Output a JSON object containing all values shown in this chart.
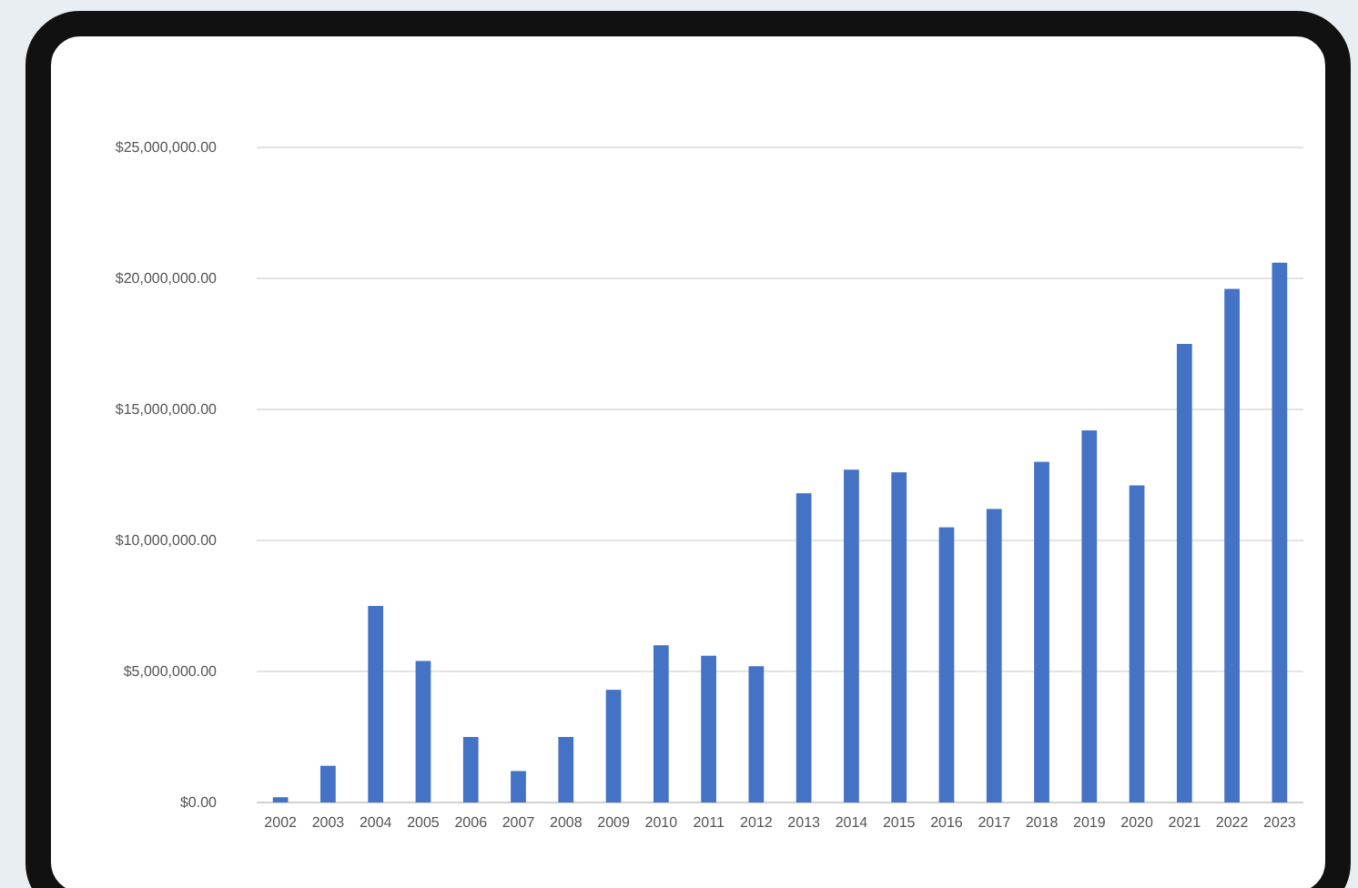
{
  "chart_data": {
    "type": "bar",
    "categories": [
      "2002",
      "2003",
      "2004",
      "2005",
      "2006",
      "2007",
      "2008",
      "2009",
      "2010",
      "2011",
      "2012",
      "2013",
      "2014",
      "2015",
      "2016",
      "2017",
      "2018",
      "2019",
      "2020",
      "2021",
      "2022",
      "2023"
    ],
    "values": [
      200000,
      1400000,
      7500000,
      5400000,
      2500000,
      1200000,
      2500000,
      4300000,
      6000000,
      5600000,
      5200000,
      11800000,
      12700000,
      12600000,
      10500000,
      11200000,
      13000000,
      14200000,
      12100000,
      17500000,
      19600000,
      20600000
    ],
    "color": "#4472c4",
    "ylim": [
      0,
      25000000
    ],
    "yticks": [
      {
        "value": 0,
        "label": "$0.00"
      },
      {
        "value": 5000000,
        "label": "$5,000,000.00"
      },
      {
        "value": 10000000,
        "label": "$10,000,000.00"
      },
      {
        "value": 15000000,
        "label": "$15,000,000.00"
      },
      {
        "value": 20000000,
        "label": "$20,000,000.00"
      },
      {
        "value": 25000000,
        "label": "$25,000,000.00"
      }
    ],
    "grid": "y"
  }
}
